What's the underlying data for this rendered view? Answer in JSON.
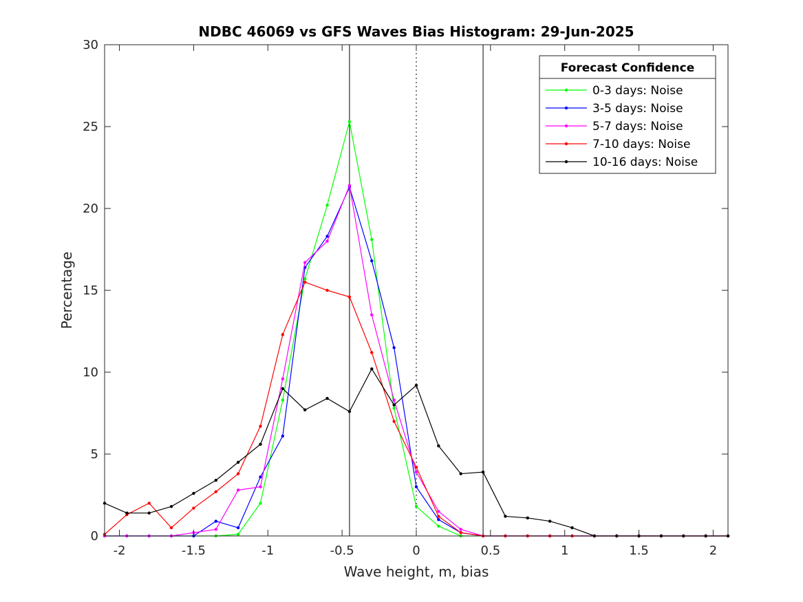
{
  "chart_data": {
    "type": "line",
    "title": "NDBC 46069 vs GFS Waves Bias Histogram: 29-Jun-2025",
    "xlabel": "Wave height, m, bias",
    "ylabel": "Percentage",
    "xlim": [
      -2.1,
      2.1
    ],
    "ylim": [
      0,
      30
    ],
    "xticks": [
      -2,
      -1.5,
      -1,
      -0.5,
      0,
      0.5,
      1,
      1.5,
      2
    ],
    "xtick_labels": [
      "-2",
      "-1.5",
      "-1",
      "-0.5",
      "0",
      "0.5",
      "1",
      "1.5",
      "2"
    ],
    "yticks": [
      0,
      5,
      10,
      15,
      20,
      25,
      30
    ],
    "ytick_labels": [
      "0",
      "5",
      "10",
      "15",
      "20",
      "25",
      "30"
    ],
    "grid": false,
    "legend": {
      "title": "Forecast Confidence",
      "position": "top-right"
    },
    "reference_lines": [
      {
        "x": -0.45,
        "style": "solid"
      },
      {
        "x": 0,
        "style": "dotted"
      },
      {
        "x": 0.45,
        "style": "solid"
      }
    ],
    "x": [
      -2.1,
      -1.95,
      -1.8,
      -1.65,
      -1.5,
      -1.35,
      -1.2,
      -1.05,
      -0.9,
      -0.75,
      -0.6,
      -0.45,
      -0.3,
      -0.15,
      0,
      0.15,
      0.3,
      0.45,
      0.6,
      0.75,
      0.9,
      1.05,
      1.2,
      1.35,
      1.5,
      1.65,
      1.8,
      1.95,
      2.1
    ],
    "series": [
      {
        "name": "0-3 days: Noise",
        "color": "#00ff00",
        "values": [
          0,
          0,
          0,
          0,
          0,
          0,
          0.1,
          2.0,
          8.3,
          15.7,
          20.2,
          25.3,
          18.1,
          7.8,
          1.8,
          0.6,
          0,
          0,
          0,
          0,
          0,
          0,
          0,
          0,
          0,
          0,
          0,
          0,
          0
        ]
      },
      {
        "name": "3-5 days: Noise",
        "color": "#0000ff",
        "values": [
          0,
          0,
          0,
          0,
          0,
          0.9,
          0.5,
          3.6,
          6.1,
          16.4,
          18.3,
          21.3,
          16.8,
          11.5,
          3.0,
          1.0,
          0.2,
          0,
          0,
          0,
          0,
          0,
          0,
          0,
          0,
          0,
          0,
          0,
          0
        ]
      },
      {
        "name": "5-7 days: Noise",
        "color": "#ff00ff",
        "values": [
          0,
          0,
          0,
          0,
          0.2,
          0.4,
          2.8,
          3.0,
          9.6,
          16.7,
          18.0,
          21.4,
          13.5,
          8.3,
          3.9,
          1.5,
          0.4,
          0,
          0,
          0,
          0,
          0,
          0,
          0,
          0,
          0,
          0,
          0,
          0
        ]
      },
      {
        "name": "7-10 days: Noise",
        "color": "#ff0000",
        "values": [
          0.1,
          1.3,
          2.0,
          0.5,
          1.7,
          2.7,
          3.8,
          6.7,
          12.3,
          15.5,
          15.0,
          14.6,
          11.2,
          7.0,
          4.2,
          1.2,
          0.2,
          0,
          0,
          0,
          0,
          0,
          0,
          0,
          0,
          0,
          0,
          0,
          0
        ]
      },
      {
        "name": "10-16 days: Noise",
        "color": "#000000",
        "values": [
          2.0,
          1.4,
          1.4,
          1.8,
          2.6,
          3.4,
          4.5,
          5.6,
          9.0,
          7.7,
          8.4,
          7.6,
          10.2,
          8.0,
          9.2,
          5.5,
          3.8,
          3.9,
          1.2,
          1.1,
          0.9,
          0.5,
          0,
          0,
          0,
          0,
          0,
          0,
          0
        ]
      }
    ]
  }
}
